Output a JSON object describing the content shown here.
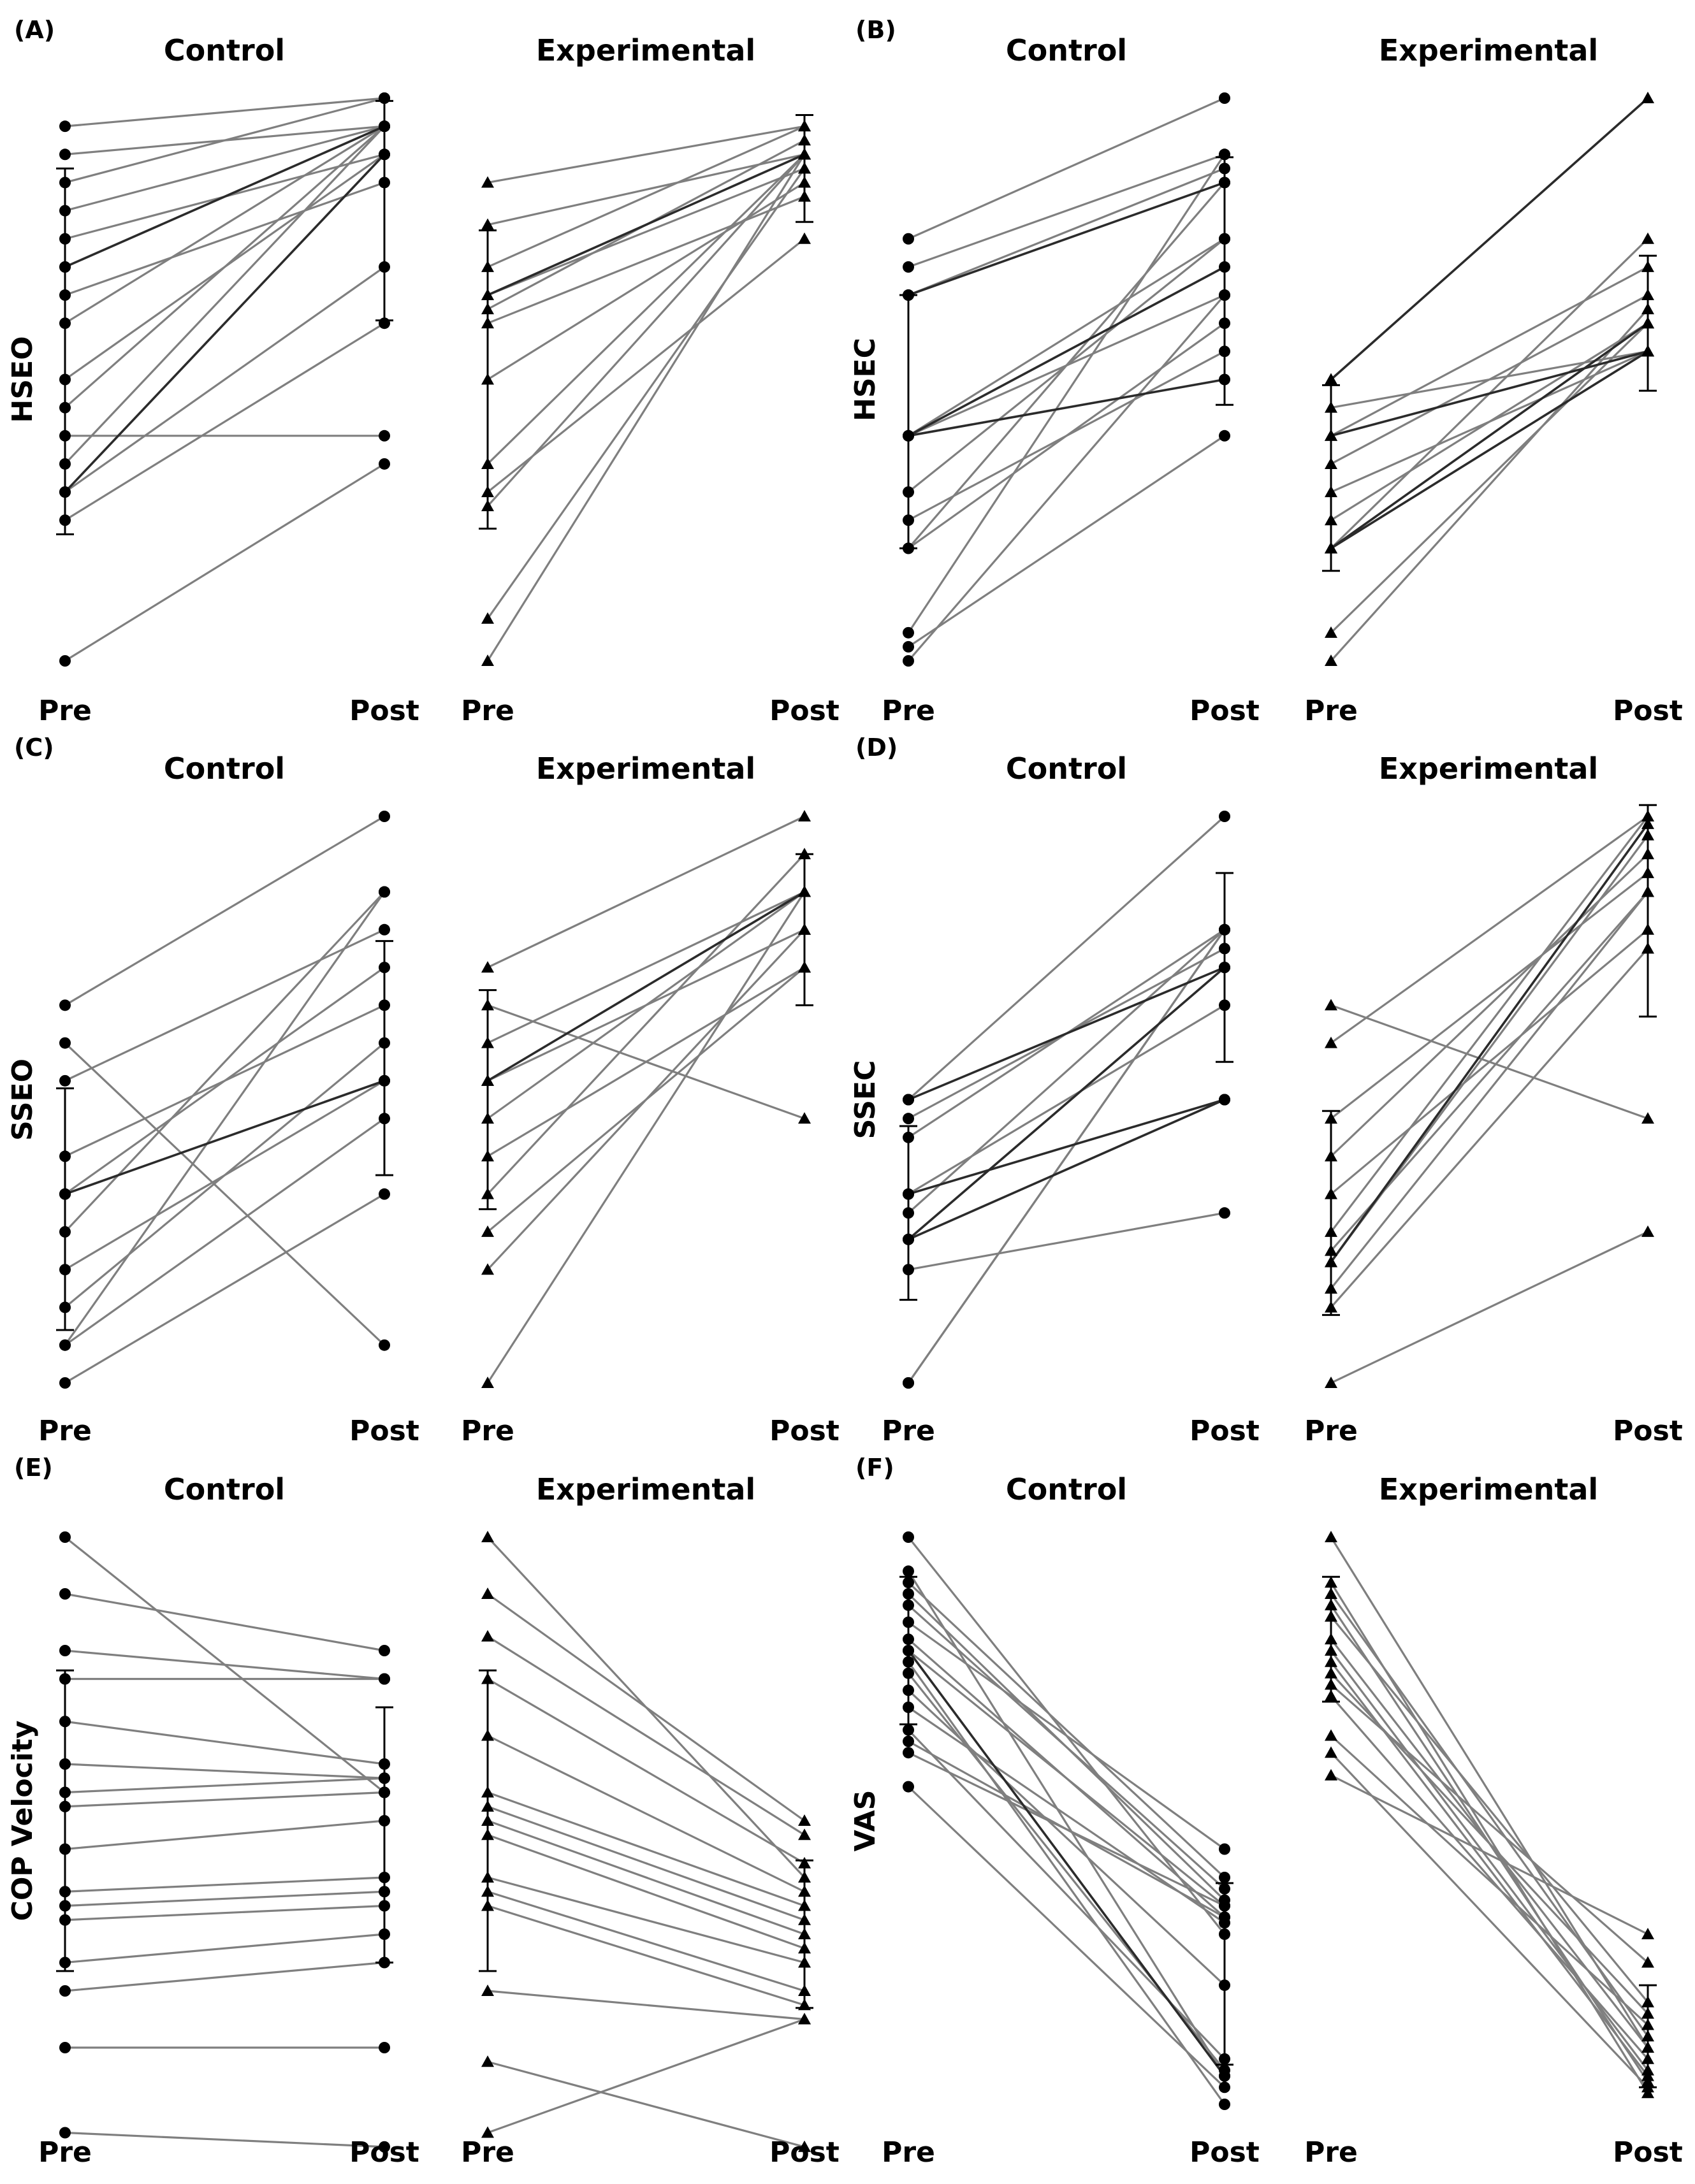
{
  "figure": {
    "x_ticks": [
      "Pre",
      "Post"
    ]
  },
  "chart_data": [
    {
      "type": "line",
      "panel": "(A)",
      "ylabel": "HSEO",
      "ylim": [
        0,
        20
      ],
      "xlabel": "",
      "groups": [
        {
          "title": "Control",
          "marker": "circle",
          "categories": [
            "Pre",
            "Post"
          ],
          "pairs": [
            [
              19,
              20
            ],
            [
              18,
              19
            ],
            [
              17,
              20
            ],
            [
              16,
              19
            ],
            [
              15,
              18
            ],
            [
              14,
              19
            ],
            [
              13,
              17
            ],
            [
              12,
              19
            ],
            [
              10,
              18
            ],
            [
              9,
              19
            ],
            [
              8,
              8
            ],
            [
              7,
              19
            ],
            [
              6,
              14
            ],
            [
              5,
              12
            ],
            [
              0,
              7
            ]
          ],
          "bold_pairs": [
            [
              14,
              19
            ],
            [
              6,
              18
            ]
          ],
          "mean_sd": [
            {
              "mean": 11,
              "sd": 6.5
            },
            {
              "mean": 16,
              "sd": 3.9
            }
          ]
        },
        {
          "title": "Experimental",
          "marker": "triangle",
          "categories": [
            "Pre",
            "Post"
          ],
          "pairs": [
            [
              17,
              19
            ],
            [
              15.5,
              18
            ],
            [
              14,
              19
            ],
            [
              13,
              17.5
            ],
            [
              12.5,
              18.5
            ],
            [
              12,
              16.5
            ],
            [
              10,
              17
            ],
            [
              7,
              18
            ],
            [
              6,
              15
            ],
            [
              5.5,
              18
            ],
            [
              1.5,
              17.5
            ],
            [
              0,
              18
            ]
          ],
          "bold_pairs": [
            [
              13,
              18
            ]
          ],
          "mean_sd": [
            {
              "mean": 10,
              "sd": 5.3
            },
            {
              "mean": 17.5,
              "sd": 1.9
            }
          ]
        }
      ]
    },
    {
      "type": "line",
      "panel": "(B)",
      "ylabel": "HSEC",
      "ylim": [
        0,
        20
      ],
      "xlabel": "",
      "groups": [
        {
          "title": "Control",
          "marker": "circle",
          "categories": [
            "Pre",
            "Post"
          ],
          "pairs": [
            [
              15,
              20
            ],
            [
              14,
              18
            ],
            [
              13,
              17.5
            ],
            [
              8,
              15
            ],
            [
              8,
              13
            ],
            [
              6,
              15
            ],
            [
              5,
              11
            ],
            [
              4,
              17
            ],
            [
              4,
              12
            ],
            [
              1,
              18
            ],
            [
              0,
              13
            ],
            [
              0.5,
              8
            ]
          ],
          "bold_pairs": [
            [
              13,
              17
            ],
            [
              8,
              14
            ],
            [
              8,
              10
            ]
          ],
          "mean_sd": [
            {
              "mean": 8.5,
              "sd": 4.5
            },
            {
              "mean": 13.5,
              "sd": 4.4
            }
          ]
        },
        {
          "title": "Experimental",
          "marker": "triangle",
          "categories": [
            "Pre",
            "Post"
          ],
          "pairs": [
            [
              10,
              20
            ],
            [
              9,
              11
            ],
            [
              8,
              14
            ],
            [
              7,
              13
            ],
            [
              6,
              11
            ],
            [
              5,
              12
            ],
            [
              4,
              15
            ],
            [
              1,
              12
            ],
            [
              0,
              12.5
            ],
            [
              4,
              11
            ]
          ],
          "bold_pairs": [
            [
              10,
              20
            ],
            [
              8,
              11
            ],
            [
              4,
              12
            ],
            [
              4,
              11
            ]
          ],
          "mean_sd": [
            {
              "mean": 6.5,
              "sd": 3.3
            },
            {
              "mean": 12,
              "sd": 2.4
            }
          ]
        }
      ]
    },
    {
      "type": "line",
      "panel": "(C)",
      "ylabel": "SSEO",
      "ylim": [
        0,
        15
      ],
      "xlabel": "",
      "groups": [
        {
          "title": "Control",
          "marker": "circle",
          "categories": [
            "Pre",
            "Post"
          ],
          "pairs": [
            [
              10,
              15
            ],
            [
              9,
              1
            ],
            [
              8,
              12
            ],
            [
              6,
              10
            ],
            [
              5,
              8
            ],
            [
              5,
              11
            ],
            [
              4,
              13
            ],
            [
              3,
              8
            ],
            [
              2,
              9
            ],
            [
              1,
              7
            ],
            [
              1,
              13
            ],
            [
              0,
              5
            ]
          ],
          "bold_pairs": [
            [
              5,
              8
            ]
          ],
          "mean_sd": [
            {
              "mean": 4.6,
              "sd": 3.2
            },
            {
              "mean": 8.6,
              "sd": 3.1
            }
          ]
        },
        {
          "title": "Experimental",
          "marker": "triangle",
          "categories": [
            "Pre",
            "Post"
          ],
          "pairs": [
            [
              11,
              15
            ],
            [
              10,
              7
            ],
            [
              9,
              13
            ],
            [
              8,
              12
            ],
            [
              7,
              13
            ],
            [
              6,
              11
            ],
            [
              5,
              14
            ],
            [
              4,
              11
            ],
            [
              3,
              12
            ],
            [
              0,
              13
            ]
          ],
          "bold_pairs": [
            [
              8,
              13
            ]
          ],
          "mean_sd": [
            {
              "mean": 7.5,
              "sd": 2.9
            },
            {
              "mean": 12,
              "sd": 2
            }
          ]
        }
      ]
    },
    {
      "type": "line",
      "panel": "(D)",
      "ylabel": "SSEC",
      "ylim": [
        0,
        15
      ],
      "xlabel": "",
      "groups": [
        {
          "title": "Control",
          "marker": "circle",
          "categories": [
            "Pre",
            "Post"
          ],
          "pairs": [
            [
              7.5,
              15
            ],
            [
              7,
              11.5
            ],
            [
              6.5,
              12
            ],
            [
              5,
              10
            ],
            [
              4.5,
              12
            ],
            [
              3.8,
              11
            ],
            [
              3,
              4.5
            ],
            [
              0,
              12
            ],
            [
              0,
              12
            ]
          ],
          "bold_pairs": [
            [
              7.5,
              11
            ],
            [
              3.8,
              7.5
            ],
            [
              3.8,
              11
            ],
            [
              5,
              7.5
            ]
          ],
          "mean_sd": [
            {
              "mean": 4.5,
              "sd": 2.3
            },
            {
              "mean": 11,
              "sd": 2.5
            }
          ]
        },
        {
          "title": "Experimental",
          "marker": "triangle",
          "categories": [
            "Pre",
            "Post"
          ],
          "pairs": [
            [
              10,
              7
            ],
            [
              9,
              15
            ],
            [
              7,
              13.5
            ],
            [
              6,
              14
            ],
            [
              5,
              12
            ],
            [
              4,
              15
            ],
            [
              3.5,
              13
            ],
            [
              3.2,
              14.5
            ],
            [
              2.5,
              13
            ],
            [
              2,
              11.5
            ],
            [
              0,
              4
            ]
          ],
          "bold_pairs": [
            [
              3.2,
              14.8
            ]
          ],
          "mean_sd": [
            {
              "mean": 4.5,
              "sd": 2.7
            },
            {
              "mean": 12.5,
              "sd": 2.8
            }
          ]
        }
      ]
    },
    {
      "type": "line",
      "panel": "(E)",
      "ylabel": "COP Velocity",
      "ylim": [
        0,
        20
      ],
      "xlabel": "",
      "groups": [
        {
          "title": "Control",
          "marker": "circle",
          "categories": [
            "Pre",
            "Post"
          ],
          "pairs": [
            [
              20,
              11
            ],
            [
              18,
              16
            ],
            [
              16,
              15
            ],
            [
              15,
              15
            ],
            [
              13.5,
              12
            ],
            [
              12,
              11.5
            ],
            [
              11,
              11.5
            ],
            [
              10.5,
              11
            ],
            [
              9,
              10
            ],
            [
              7.5,
              8
            ],
            [
              7,
              7.5
            ],
            [
              6.5,
              7
            ],
            [
              5,
              6
            ],
            [
              4,
              5
            ],
            [
              2,
              2
            ],
            [
              -1,
              -1.5
            ]
          ],
          "bold_pairs": [],
          "mean_sd": [
            {
              "mean": 10,
              "sd": 5.3
            },
            {
              "mean": 9.5,
              "sd": 4.5
            }
          ]
        },
        {
          "title": "Experimental",
          "marker": "triangle",
          "categories": [
            "Pre",
            "Post"
          ],
          "pairs": [
            [
              20,
              8
            ],
            [
              18,
              10
            ],
            [
              16.5,
              9.5
            ],
            [
              15,
              8.5
            ],
            [
              13,
              7.5
            ],
            [
              11,
              7
            ],
            [
              10.5,
              6.5
            ],
            [
              10,
              6
            ],
            [
              9.5,
              5.5
            ],
            [
              8,
              5
            ],
            [
              7.5,
              4
            ],
            [
              7,
              3.5
            ],
            [
              4,
              3
            ],
            [
              1.5,
              -1.5
            ],
            [
              -1,
              3
            ]
          ],
          "bold_pairs": [],
          "mean_sd": [
            {
              "mean": 10,
              "sd": 5.3
            },
            {
              "mean": 6,
              "sd": 2.6
            }
          ]
        }
      ]
    },
    {
      "type": "line",
      "panel": "(F)",
      "ylabel": "VAS",
      "ylim": [
        0,
        10
      ],
      "xlabel": "",
      "groups": [
        {
          "title": "Control",
          "marker": "circle",
          "categories": [
            "Pre",
            "Post"
          ],
          "pairs": [
            [
              10,
              3
            ],
            [
              9.4,
              0.5
            ],
            [
              9.2,
              4
            ],
            [
              9,
              3.6
            ],
            [
              8.8,
              3.8
            ],
            [
              8.5,
              4.5
            ],
            [
              8.2,
              3.3
            ],
            [
              8,
              3.5
            ],
            [
              7.8,
              0
            ],
            [
              7.6,
              0.6
            ],
            [
              7.3,
              2.1
            ],
            [
              7,
              3.2
            ],
            [
              6.6,
              0.8
            ],
            [
              6.4,
              3.3
            ],
            [
              6.2,
              3.5
            ],
            [
              5.6,
              0.3
            ]
          ],
          "bold_pairs": [
            [
              8,
              0.5
            ]
          ],
          "mean_sd": [
            {
              "mean": 8,
              "sd": 1.3
            },
            {
              "mean": 2.3,
              "sd": 1.6
            }
          ]
        },
        {
          "title": "Experimental",
          "marker": "triangle",
          "categories": [
            "Pre",
            "Post"
          ],
          "pairs": [
            [
              10,
              1
            ],
            [
              9.2,
              0.2
            ],
            [
              9,
              1.2
            ],
            [
              8.8,
              0.4
            ],
            [
              8.6,
              1.8
            ],
            [
              8.2,
              1
            ],
            [
              8,
              0.6
            ],
            [
              7.8,
              0.5
            ],
            [
              7.6,
              1.6
            ],
            [
              7.4,
              2.5
            ],
            [
              7.2,
              0.8
            ],
            [
              6.5,
              1.4
            ],
            [
              6.2,
              0.3
            ],
            [
              5.8,
              3
            ]
          ],
          "bold_pairs": [],
          "mean_sd": [
            {
              "mean": 8.2,
              "sd": 1.1
            },
            {
              "mean": 1.2,
              "sd": 0.9
            }
          ]
        }
      ]
    }
  ]
}
